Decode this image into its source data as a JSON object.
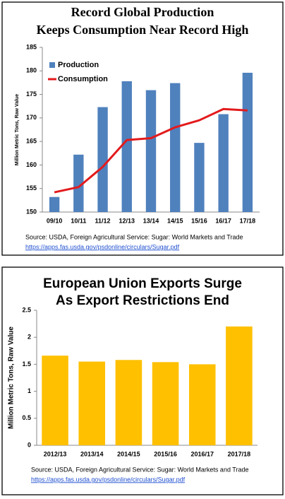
{
  "chart_data": [
    {
      "type": "bar",
      "title": [
        "Record Global Production",
        "Keeps Consumption Near Record High"
      ],
      "y_label": "Million Metric Tons, Raw Value",
      "categories": [
        "09/10",
        "10/11",
        "11/12",
        "12/13",
        "13/14",
        "14/15",
        "15/16",
        "16/17",
        "17/18"
      ],
      "series": [
        {
          "name": "Production",
          "type": "bar",
          "color": "#4f81bd",
          "values": [
            153.2,
            162.2,
            172.3,
            177.8,
            175.9,
            177.4,
            164.7,
            170.8,
            179.6
          ]
        },
        {
          "name": "Consumption",
          "type": "line",
          "color": "#e31a1c",
          "values": [
            154.2,
            155.3,
            159.6,
            165.3,
            165.7,
            168.0,
            169.5,
            171.9,
            171.6
          ]
        }
      ],
      "ylim": [
        150,
        185
      ],
      "yticks": [
        150,
        155,
        160,
        165,
        170,
        175,
        180,
        185
      ],
      "grid": false,
      "legend": "top-left",
      "source": "Source: USDA, Foreign Agricultural Service:  Sugar: World Markets and Trade",
      "source_url": "https://apps.fas.usda.gov/psdonline/circulars/Sugar.pdf"
    },
    {
      "type": "bar",
      "title": [
        "European Union Exports Surge",
        "As Export Restrictions End"
      ],
      "y_label": "Million Metric Tons, Raw Value",
      "categories": [
        "2012/13",
        "2013/14",
        "2014/15",
        "2015/16",
        "2016/17",
        "2017/18"
      ],
      "series": [
        {
          "type": "bar",
          "color": "#ffc000",
          "values": [
            1.66,
            1.55,
            1.58,
            1.54,
            1.5,
            2.2
          ]
        }
      ],
      "ylim": [
        0,
        2.5
      ],
      "yticks": [
        0,
        0.5,
        1,
        1.5,
        2,
        2.5
      ],
      "grid": false,
      "source": "Source: USDA, Foreign Agricultural Service:  Sugar: World Markets and Trade",
      "source_url": "https://apps.fas.usda.gov/psdonline/circulars/Sugar.pdf"
    }
  ]
}
